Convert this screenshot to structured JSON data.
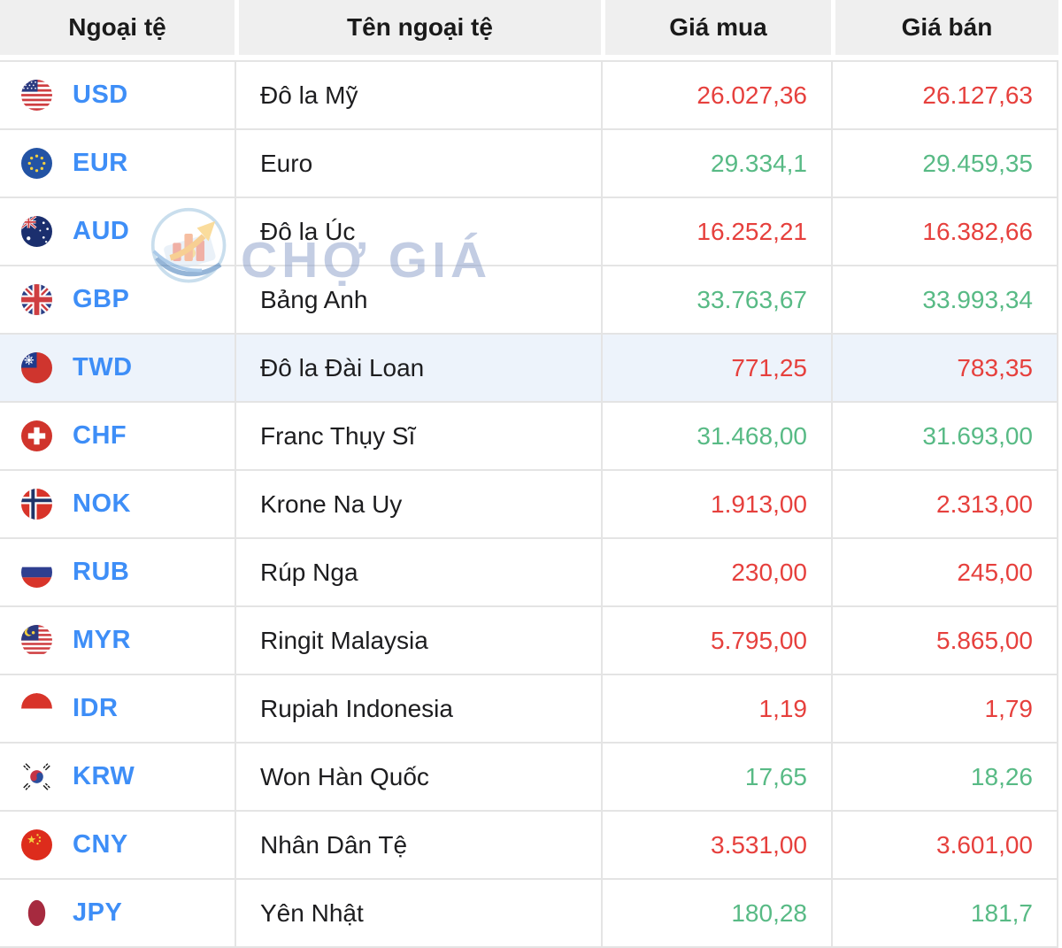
{
  "table": {
    "columns": [
      "Ngoại tệ",
      "Tên ngoại tệ",
      "Giá mua",
      "Giá bán"
    ],
    "rows": [
      {
        "code": "USD",
        "flag": "usd-flag-icon",
        "name": "Đô la Mỹ",
        "buy": "26.027,36",
        "sell": "26.127,63",
        "trend": "down",
        "highlighted": false
      },
      {
        "code": "EUR",
        "flag": "eur-flag-icon",
        "name": "Euro",
        "buy": "29.334,1",
        "sell": "29.459,35",
        "trend": "up",
        "highlighted": false
      },
      {
        "code": "AUD",
        "flag": "aud-flag-icon",
        "name": "Đô la Úc",
        "buy": "16.252,21",
        "sell": "16.382,66",
        "trend": "down",
        "highlighted": false
      },
      {
        "code": "GBP",
        "flag": "gbp-flag-icon",
        "name": "Bảng Anh",
        "buy": "33.763,67",
        "sell": "33.993,34",
        "trend": "up",
        "highlighted": false
      },
      {
        "code": "TWD",
        "flag": "twd-flag-icon",
        "name": "Đô la Đài Loan",
        "buy": "771,25",
        "sell": "783,35",
        "trend": "down",
        "highlighted": true
      },
      {
        "code": "CHF",
        "flag": "chf-flag-icon",
        "name": "Franc Thụy Sĩ",
        "buy": "31.468,00",
        "sell": "31.693,00",
        "trend": "up",
        "highlighted": false
      },
      {
        "code": "NOK",
        "flag": "nok-flag-icon",
        "name": "Krone Na Uy",
        "buy": "1.913,00",
        "sell": "2.313,00",
        "trend": "down",
        "highlighted": false
      },
      {
        "code": "RUB",
        "flag": "rub-flag-icon",
        "name": "Rúp Nga",
        "buy": "230,00",
        "sell": "245,00",
        "trend": "down",
        "highlighted": false
      },
      {
        "code": "MYR",
        "flag": "myr-flag-icon",
        "name": "Ringit Malaysia",
        "buy": "5.795,00",
        "sell": "5.865,00",
        "trend": "down",
        "highlighted": false
      },
      {
        "code": "IDR",
        "flag": "idr-flag-icon",
        "name": "Rupiah Indonesia",
        "buy": "1,19",
        "sell": "1,79",
        "trend": "down",
        "highlighted": false
      },
      {
        "code": "KRW",
        "flag": "krw-flag-icon",
        "name": "Won Hàn Quốc",
        "buy": "17,65",
        "sell": "18,26",
        "trend": "up",
        "highlighted": false
      },
      {
        "code": "CNY",
        "flag": "cny-flag-icon",
        "name": "Nhân Dân Tệ",
        "buy": "3.531,00",
        "sell": "3.601,00",
        "trend": "down",
        "highlighted": false
      },
      {
        "code": "JPY",
        "flag": "jpy-flag-icon",
        "name": "Yên Nhật",
        "buy": "180,28",
        "sell": "181,7",
        "trend": "up",
        "highlighted": false
      }
    ]
  },
  "watermark": {
    "text": "CHỢ GIÁ",
    "logo_icon": "cho-gia-logo"
  },
  "colors": {
    "price_up": "#58ba85",
    "price_down": "#e6403d",
    "currency_code": "#3e8ef7",
    "highlight_row_bg": "#edf3fb",
    "header_bg": "#efefef",
    "grid_line": "#e4e4e4"
  }
}
